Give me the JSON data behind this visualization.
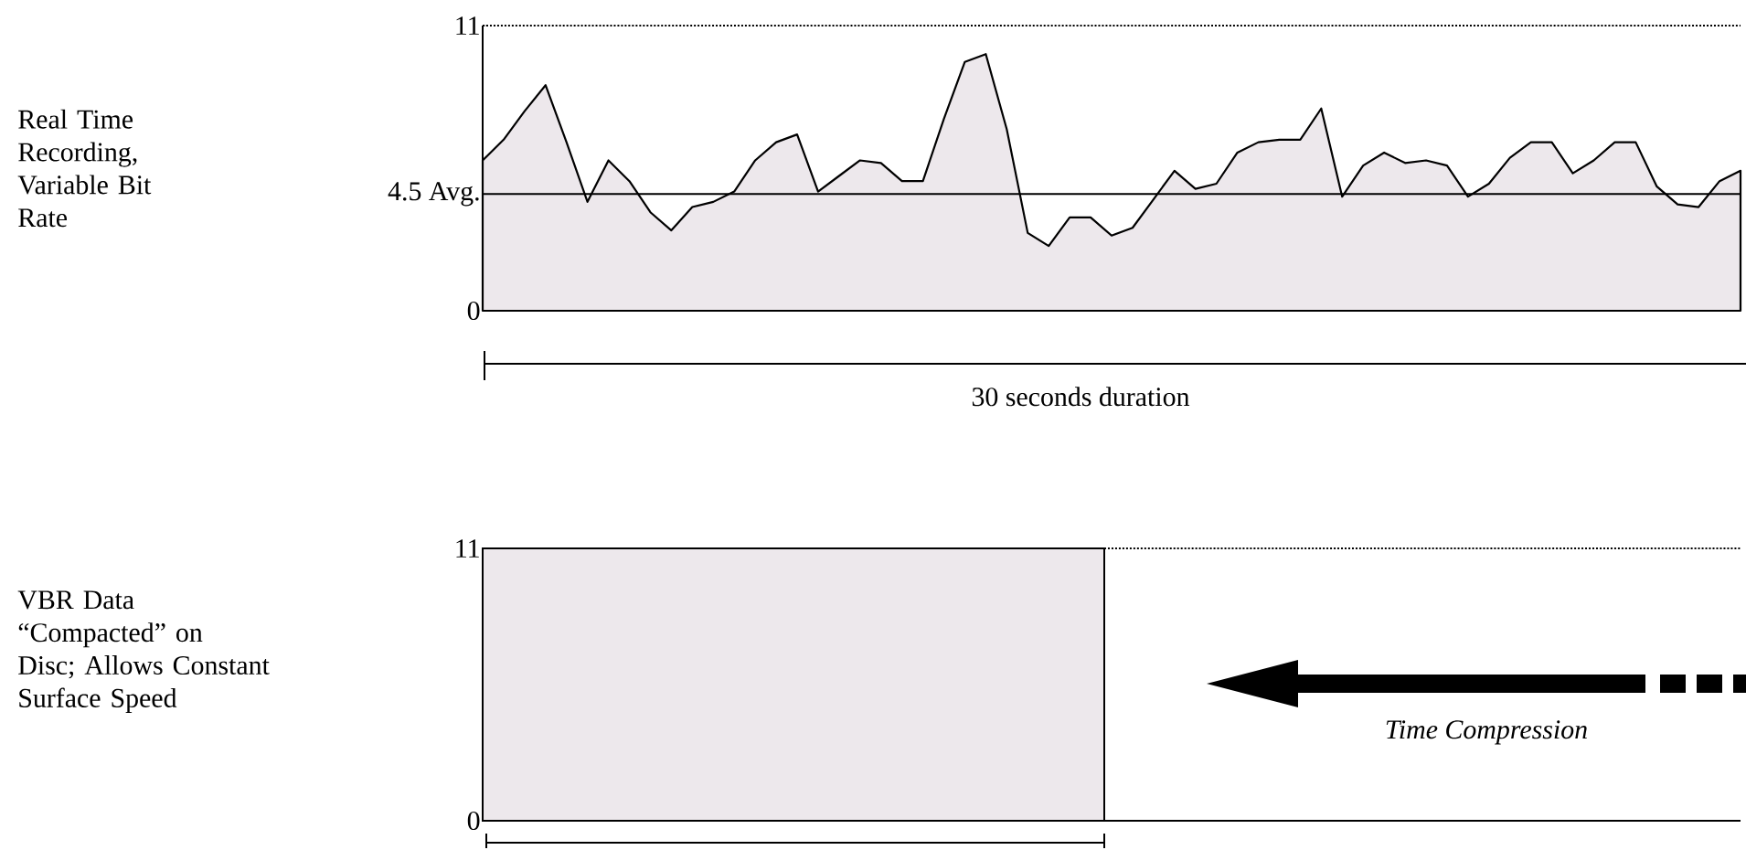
{
  "chart_data": [
    {
      "type": "area",
      "ylabel": "Real Time Recording, Variable Bit Rate",
      "color": "#ede8ec",
      "categories": [
        null,
        null,
        null,
        null,
        null,
        null,
        null,
        null,
        null,
        null,
        null,
        null,
        null,
        null,
        null,
        null,
        null,
        null,
        null,
        null,
        null,
        null,
        null,
        null,
        null,
        null,
        null,
        null,
        null,
        null,
        null,
        null,
        null,
        null,
        null,
        null,
        null,
        null,
        null,
        null,
        null,
        null,
        null,
        null,
        null,
        null,
        null,
        null,
        null,
        null,
        null,
        null,
        null,
        null,
        null,
        null,
        null,
        null,
        null,
        null,
        null
      ],
      "values": [
        5.8,
        6.6,
        7.7,
        8.7,
        6.5,
        4.2,
        5.8,
        5.0,
        3.8,
        3.1,
        4.0,
        4.2,
        4.6,
        5.8,
        6.5,
        6.8,
        4.6,
        5.2,
        5.8,
        5.7,
        5.0,
        5.0,
        7.4,
        9.6,
        9.9,
        7.0,
        3.0,
        2.5,
        3.6,
        3.6,
        2.9,
        3.2,
        4.3,
        5.4,
        4.7,
        4.9,
        6.1,
        6.5,
        6.6,
        6.6,
        7.8,
        4.4,
        5.6,
        6.1,
        5.7,
        5.8,
        5.6,
        4.4,
        4.9,
        5.9,
        6.5,
        6.5,
        5.3,
        5.8,
        6.5,
        6.5,
        4.8,
        4.1,
        4.0,
        5.0,
        5.4
      ],
      "ylim": [
        0,
        11
      ],
      "yticks": [
        0,
        11
      ],
      "tick_labels": "y",
      "ref_lines": [
        {
          "axis": "y",
          "value": 4.5,
          "label": "4.5 Avg.",
          "line_style": "solid"
        },
        {
          "axis": "y",
          "value": 11,
          "label": null,
          "line_style": "dotted"
        }
      ],
      "annotations": [
        "30 seconds duration"
      ]
    },
    {
      "type": "other",
      "ylabel": "VBR Data “Compacted” on Disc; Allows Constant Surface Speed",
      "color": "#ede8ec",
      "annotations": [
        "Time Compression",
        "11",
        "0"
      ]
    }
  ]
}
